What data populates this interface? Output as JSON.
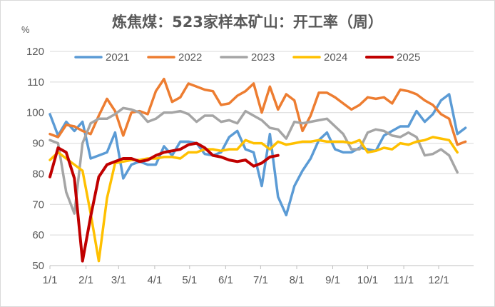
{
  "chart_data": {
    "type": "line",
    "title": "炼焦煤：523家样本矿山：开工率（周）",
    "unit_label": "%",
    "ylim": [
      50,
      120
    ],
    "yticks": [
      "50",
      "60",
      "70",
      "80",
      "90",
      "100",
      "110",
      "120"
    ],
    "xlim": [
      1,
      53
    ],
    "xticks": [
      {
        "label": "1/1",
        "x": 1
      },
      {
        "label": "2/1",
        "x": 5.43
      },
      {
        "label": "3/1",
        "x": 9.43
      },
      {
        "label": "4/1",
        "x": 13.86
      },
      {
        "label": "5/1",
        "x": 18.14
      },
      {
        "label": "6/1",
        "x": 22.57
      },
      {
        "label": "7/1",
        "x": 26.86
      },
      {
        "label": "8/1",
        "x": 31.29
      },
      {
        "label": "9/1",
        "x": 35.71
      },
      {
        "label": "10/1",
        "x": 40
      },
      {
        "label": "11/1",
        "x": 44.43
      },
      {
        "label": "12/1",
        "x": 48.71
      }
    ],
    "grid": true,
    "legend_position": "top",
    "series": [
      {
        "name": "2021",
        "color": "#5B9BD5",
        "values": [
          99.5,
          92.5,
          97,
          94,
          97,
          85,
          86,
          87,
          93.5,
          78.5,
          83,
          84,
          83,
          83,
          89,
          86,
          90.5,
          90.5,
          90,
          86.5,
          86,
          87,
          92,
          94,
          88,
          87,
          76,
          93,
          72.5,
          66.5,
          76,
          81,
          85,
          91,
          93.5,
          88,
          87,
          87,
          88.5,
          88,
          87.5,
          92.5,
          94,
          95.5,
          95.5,
          100.5,
          97,
          99.5,
          104,
          106,
          93,
          95
        ]
      },
      {
        "name": "2022",
        "color": "#ED7D31",
        "values": [
          93,
          92,
          96,
          95.5,
          94,
          93,
          99,
          104.5,
          100.5,
          92.5,
          100,
          100.5,
          99.5,
          107,
          111,
          103.5,
          105,
          109.5,
          108.5,
          107.5,
          107,
          102.5,
          103,
          105.5,
          107,
          109.5,
          100,
          108.5,
          101,
          106,
          104,
          94,
          99,
          106.5,
          106.5,
          105,
          103,
          101,
          102.5,
          105,
          104.5,
          105,
          103,
          107.5,
          107,
          106,
          104,
          102.5,
          99.5,
          98,
          89.5,
          90.5
        ]
      },
      {
        "name": "2023",
        "color": "#A5A5A5",
        "values": [
          91,
          90,
          74,
          67,
          90,
          96.5,
          98,
          98,
          99.5,
          101.5,
          101,
          100,
          97,
          98,
          100,
          100,
          100.5,
          99.5,
          97,
          99,
          99,
          97,
          97.5,
          96.5,
          100.5,
          99,
          97.5,
          95,
          94.5,
          91.5,
          97,
          96.5,
          97,
          97.5,
          98,
          95.5,
          93,
          88,
          88,
          93.5,
          94.5,
          94,
          92.5,
          92,
          93.5,
          92,
          86,
          86.5,
          88,
          86,
          80.5,
          null
        ]
      },
      {
        "name": "2024",
        "color": "#FFC000",
        "values": [
          84.5,
          87,
          85,
          83,
          81,
          67,
          51.5,
          72,
          83.5,
          84,
          84.5,
          84.5,
          85,
          85,
          85.5,
          85.5,
          85,
          87,
          87,
          88,
          88,
          87.5,
          88,
          88,
          91,
          90,
          90,
          88,
          90.5,
          89.5,
          90,
          90.5,
          90.5,
          91,
          90.5,
          90.5,
          90.5,
          90,
          91,
          87,
          87.5,
          88.5,
          88,
          90,
          89.5,
          90.5,
          91,
          92,
          91.5,
          91,
          87,
          null
        ]
      },
      {
        "name": "2025",
        "color": "#C00000",
        "values": [
          79,
          88.5,
          87,
          78.5,
          51.5,
          66,
          79,
          83,
          84,
          85,
          85,
          84,
          84.5,
          86,
          87,
          87.5,
          88,
          89.5,
          90,
          88.5,
          86,
          85.5,
          84.5,
          84,
          84.5,
          82.5,
          83.5,
          85.5,
          86,
          null,
          null,
          null,
          null,
          null,
          null,
          null,
          null,
          null,
          null,
          null,
          null,
          null,
          null,
          null,
          null,
          null,
          null,
          null,
          null,
          null,
          null,
          null
        ]
      }
    ]
  }
}
